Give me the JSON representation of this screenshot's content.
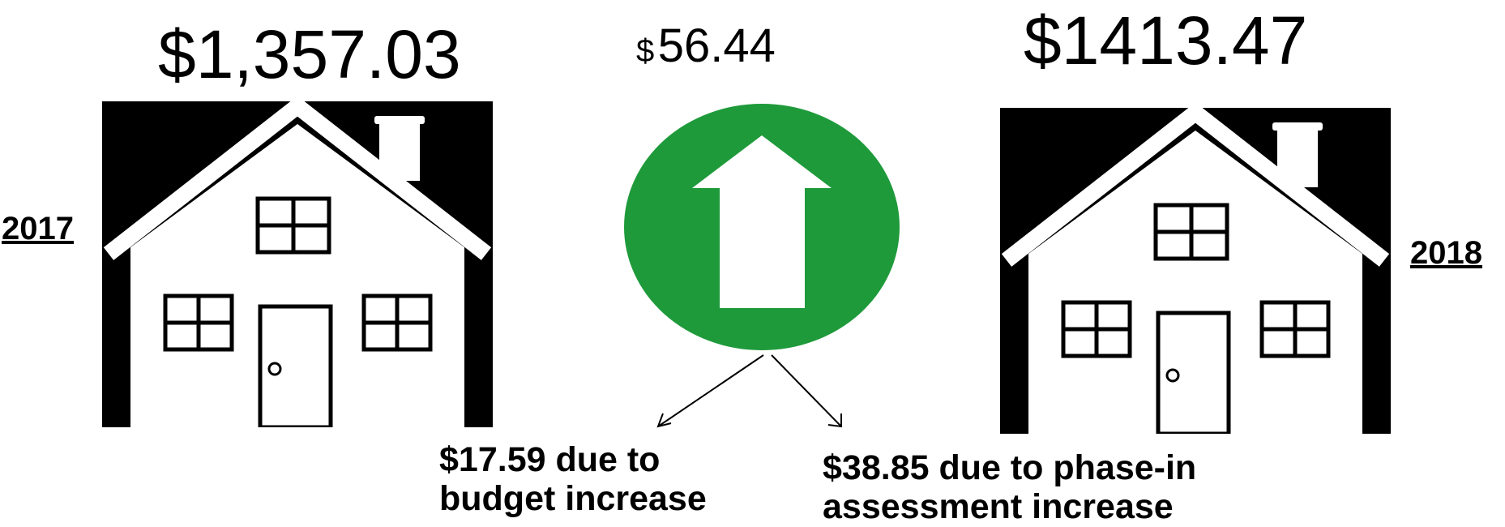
{
  "amount_2017": "$1,357.03",
  "amount_2018": "$1413.47",
  "increase": {
    "currency": "$",
    "value": "56.44"
  },
  "year_left": "2017",
  "year_right": "2018",
  "breakdown": {
    "budget": {
      "line1": "$17.59 due to",
      "line2": "budget increase"
    },
    "assessment": {
      "line1": "$38.85 due to phase-in",
      "line2": "assessment increase"
    }
  },
  "colors": {
    "up_circle": "#1e9a3a",
    "house_bg": "#000000",
    "house_fill": "#ffffff"
  },
  "icons": [
    "house-icon",
    "up-arrow-icon"
  ]
}
